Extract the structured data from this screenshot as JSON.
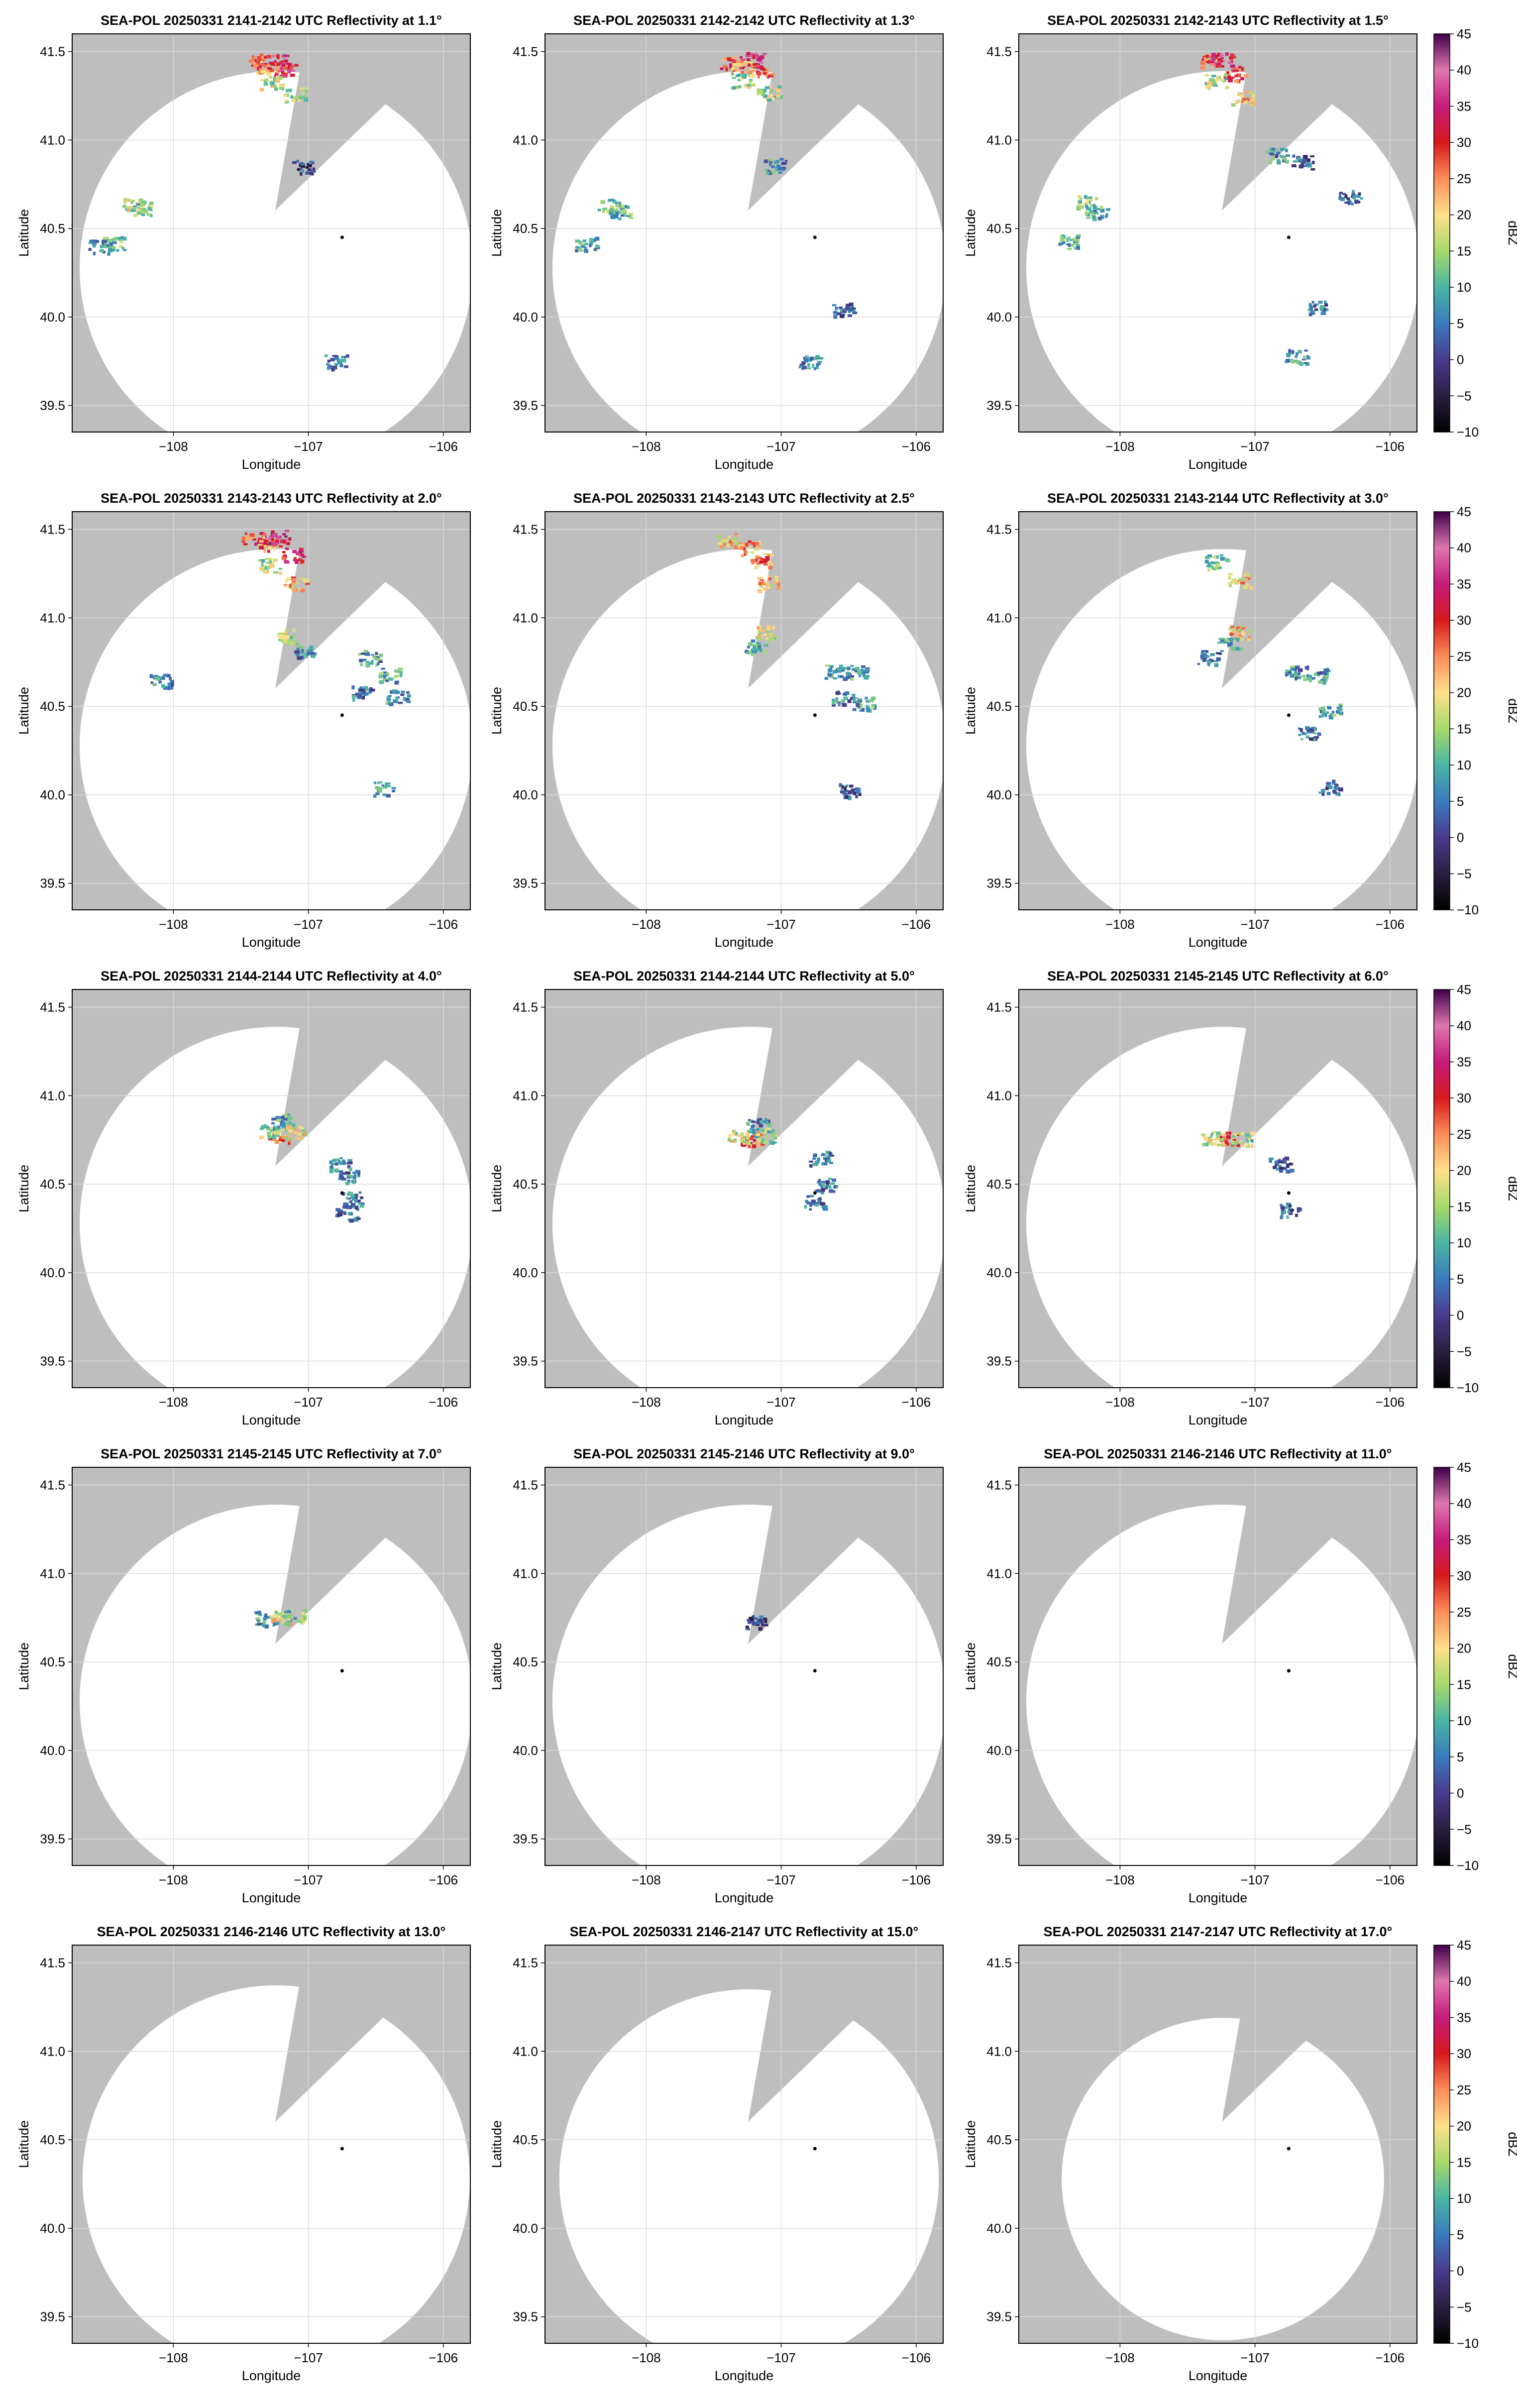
{
  "figure": {
    "xlabel": "Longitude",
    "ylabel": "Latitude",
    "colorbar_label": "dBZ",
    "background_color": "#bebebe",
    "coverage_color": "#ffffff",
    "grid_color": "#d9d9d9"
  },
  "colorbar": {
    "ticks": [
      45,
      40,
      35,
      30,
      25,
      20,
      15,
      10,
      5,
      0,
      -5,
      -10
    ],
    "labels": [
      "45",
      "40",
      "35",
      "30",
      "25",
      "20",
      "15",
      "10",
      "5",
      "0",
      "−5",
      "−10"
    ],
    "vmin": -10,
    "vmax": 45,
    "stops": [
      {
        "v": -10,
        "c": "#000000"
      },
      {
        "v": -5,
        "c": "#2b1e3f"
      },
      {
        "v": 0,
        "c": "#4a3a8f"
      },
      {
        "v": 5,
        "c": "#3a7bbd"
      },
      {
        "v": 10,
        "c": "#49b5a4"
      },
      {
        "v": 15,
        "c": "#a6d96a"
      },
      {
        "v": 20,
        "c": "#fee08b"
      },
      {
        "v": 25,
        "c": "#fc8d59"
      },
      {
        "v": 30,
        "c": "#d7191c"
      },
      {
        "v": 35,
        "c": "#c51b7d"
      },
      {
        "v": 40,
        "c": "#de77ae"
      },
      {
        "v": 45,
        "c": "#40004b"
      }
    ]
  },
  "chart_data": [
    {
      "type": "heatmap",
      "title": "SEA-POL 20250331 2141-2142 UTC Reflectivity at 1.1°",
      "elevation": 1.1,
      "radar": [
        -106.75,
        40.45
      ],
      "range_frac": 1.0,
      "echoes": [
        [
          -107.38,
          41.45,
          36
        ],
        [
          -107.32,
          41.42,
          30
        ],
        [
          -107.23,
          41.45,
          42
        ],
        [
          -107.18,
          41.4,
          38
        ],
        [
          -107.28,
          41.33,
          24
        ],
        [
          -107.1,
          41.26,
          22
        ],
        [
          -108.3,
          40.64,
          24
        ],
        [
          -108.25,
          40.62,
          20
        ],
        [
          -108.45,
          40.42,
          18
        ],
        [
          -108.55,
          40.4,
          15
        ],
        [
          -107.05,
          40.85,
          8
        ],
        [
          -106.8,
          39.75,
          12
        ]
      ]
    },
    {
      "type": "heatmap",
      "title": "SEA-POL 20250331 2142-2142 UTC Reflectivity at 1.3°",
      "elevation": 1.3,
      "radar": [
        -106.75,
        40.45
      ],
      "range_frac": 1.0,
      "echoes": [
        [
          -107.38,
          41.44,
          35
        ],
        [
          -107.3,
          41.42,
          30
        ],
        [
          -107.22,
          41.46,
          42
        ],
        [
          -107.16,
          41.4,
          36
        ],
        [
          -107.1,
          41.27,
          22
        ],
        [
          -107.3,
          41.34,
          22
        ],
        [
          -108.28,
          40.63,
          20
        ],
        [
          -108.2,
          40.6,
          17
        ],
        [
          -108.45,
          40.42,
          16
        ],
        [
          -107.05,
          40.86,
          14
        ],
        [
          -106.55,
          40.05,
          8
        ],
        [
          -106.8,
          39.75,
          12
        ]
      ]
    },
    {
      "type": "heatmap",
      "title": "SEA-POL 20250331 2142-2143 UTC Reflectivity at 1.5°",
      "elevation": 1.5,
      "radar": [
        -106.75,
        40.45
      ],
      "range_frac": 1.0,
      "echoes": [
        [
          -107.35,
          41.45,
          34
        ],
        [
          -107.25,
          41.46,
          42
        ],
        [
          -107.16,
          41.38,
          36
        ],
        [
          -107.1,
          41.24,
          28
        ],
        [
          -107.3,
          41.34,
          22
        ],
        [
          -108.25,
          40.65,
          20
        ],
        [
          -108.18,
          40.6,
          17
        ],
        [
          -106.85,
          40.92,
          14
        ],
        [
          -106.65,
          40.88,
          10
        ],
        [
          -106.3,
          40.68,
          10
        ],
        [
          -106.55,
          40.06,
          12
        ],
        [
          -106.7,
          39.78,
          14
        ],
        [
          -108.4,
          40.43,
          16
        ]
      ]
    },
    {
      "type": "heatmap",
      "title": "SEA-POL 20250331 2143-2143 UTC Reflectivity at 2.0°",
      "elevation": 2.0,
      "radar": [
        -106.75,
        40.45
      ],
      "range_frac": 1.0,
      "echoes": [
        [
          -107.42,
          41.46,
          36
        ],
        [
          -107.3,
          41.42,
          32
        ],
        [
          -107.22,
          41.46,
          44
        ],
        [
          -107.12,
          41.36,
          38
        ],
        [
          -107.1,
          41.2,
          30
        ],
        [
          -107.3,
          41.3,
          22
        ],
        [
          -107.15,
          40.9,
          22
        ],
        [
          -107.05,
          40.82,
          14
        ],
        [
          -106.55,
          40.78,
          14
        ],
        [
          -106.4,
          40.68,
          16
        ],
        [
          -106.35,
          40.56,
          14
        ],
        [
          -106.6,
          40.58,
          12
        ],
        [
          -108.1,
          40.65,
          14
        ],
        [
          -106.45,
          40.04,
          14
        ]
      ]
    },
    {
      "type": "heatmap",
      "title": "SEA-POL 20250331 2143-2143 UTC Reflectivity at 2.5°",
      "elevation": 2.5,
      "radar": [
        -106.75,
        40.45
      ],
      "range_frac": 1.0,
      "echoes": [
        [
          -107.4,
          41.44,
          28
        ],
        [
          -107.25,
          41.4,
          30
        ],
        [
          -107.15,
          41.33,
          32
        ],
        [
          -107.1,
          41.2,
          28
        ],
        [
          -107.12,
          40.92,
          26
        ],
        [
          -107.2,
          40.84,
          16
        ],
        [
          -106.6,
          40.7,
          16
        ],
        [
          -106.45,
          40.7,
          14
        ],
        [
          -106.4,
          40.52,
          16
        ],
        [
          -106.55,
          40.55,
          12
        ],
        [
          -106.5,
          40.03,
          10
        ]
      ]
    },
    {
      "type": "heatmap",
      "title": "SEA-POL 20250331 2143-2144 UTC Reflectivity at 3.0°",
      "elevation": 3.0,
      "radar": [
        -106.75,
        40.45
      ],
      "range_frac": 1.0,
      "echoes": [
        [
          -107.3,
          41.32,
          20
        ],
        [
          -107.12,
          41.22,
          28
        ],
        [
          -107.12,
          40.92,
          28
        ],
        [
          -107.2,
          40.85,
          18
        ],
        [
          -107.35,
          40.78,
          12
        ],
        [
          -106.7,
          40.7,
          14
        ],
        [
          -106.55,
          40.68,
          14
        ],
        [
          -106.45,
          40.48,
          16
        ],
        [
          -106.6,
          40.35,
          12
        ],
        [
          -106.45,
          40.05,
          10
        ]
      ]
    },
    {
      "type": "heatmap",
      "title": "SEA-POL 20250331 2144-2144 UTC Reflectivity at 4.0°",
      "elevation": 4.0,
      "radar": [
        -106.75,
        40.45
      ],
      "range_frac": 1.0,
      "echoes": [
        [
          -107.22,
          40.78,
          32
        ],
        [
          -107.12,
          40.8,
          26
        ],
        [
          -107.3,
          40.8,
          22
        ],
        [
          -107.2,
          40.86,
          16
        ],
        [
          -106.78,
          40.62,
          12
        ],
        [
          -106.7,
          40.55,
          12
        ],
        [
          -106.68,
          40.42,
          12
        ],
        [
          -106.72,
          40.34,
          12
        ]
      ]
    },
    {
      "type": "heatmap",
      "title": "SEA-POL 20250331 2144-2144 UTC Reflectivity at 5.0°",
      "elevation": 5.0,
      "radar": [
        -106.75,
        40.45
      ],
      "range_frac": 1.0,
      "echoes": [
        [
          -107.22,
          40.76,
          34
        ],
        [
          -107.32,
          40.77,
          24
        ],
        [
          -107.12,
          40.78,
          22
        ],
        [
          -107.18,
          40.84,
          14
        ],
        [
          -106.72,
          40.65,
          12
        ],
        [
          -106.68,
          40.5,
          12
        ],
        [
          -106.75,
          40.4,
          10
        ]
      ]
    },
    {
      "type": "heatmap",
      "title": "SEA-POL 20250331 2145-2145 UTC Reflectivity at 6.0°",
      "elevation": 6.0,
      "radar": [
        -106.75,
        40.45
      ],
      "range_frac": 1.0,
      "echoes": [
        [
          -107.2,
          40.76,
          32
        ],
        [
          -107.32,
          40.76,
          24
        ],
        [
          -107.1,
          40.76,
          22
        ],
        [
          -106.82,
          40.62,
          10
        ],
        [
          -106.75,
          40.36,
          10
        ]
      ]
    },
    {
      "type": "heatmap",
      "title": "SEA-POL 20250331 2145-2145 UTC Reflectivity at 7.0°",
      "elevation": 7.0,
      "radar": [
        -106.75,
        40.45
      ],
      "range_frac": 1.0,
      "echoes": [
        [
          -107.22,
          40.76,
          28
        ],
        [
          -107.32,
          40.75,
          14
        ],
        [
          -107.12,
          40.76,
          20
        ]
      ]
    },
    {
      "type": "heatmap",
      "title": "SEA-POL 20250331 2145-2146 UTC Reflectivity at 9.0°",
      "elevation": 9.0,
      "radar": [
        -106.75,
        40.45
      ],
      "range_frac": 1.0,
      "echoes": [
        [
          -107.2,
          40.73,
          6
        ]
      ]
    },
    {
      "type": "heatmap",
      "title": "SEA-POL 20250331 2146-2146 UTC Reflectivity at 11.0°",
      "elevation": 11.0,
      "radar": [
        -106.75,
        40.45
      ],
      "range_frac": 1.0,
      "echoes": []
    },
    {
      "type": "heatmap",
      "title": "SEA-POL 20250331 2146-2146 UTC Reflectivity at 13.0°",
      "elevation": 13.0,
      "radar": [
        -106.75,
        40.45
      ],
      "range_frac": 0.985,
      "echoes": []
    },
    {
      "type": "heatmap",
      "title": "SEA-POL 20250331 2146-2147 UTC Reflectivity at 15.0°",
      "elevation": 15.0,
      "radar": [
        -106.75,
        40.45
      ],
      "range_frac": 0.965,
      "echoes": []
    },
    {
      "type": "heatmap",
      "title": "SEA-POL 20250331 2147-2147 UTC Reflectivity at 17.0°",
      "elevation": 17.0,
      "radar": [
        -106.75,
        40.45
      ],
      "range_frac": 0.82,
      "echoes": []
    }
  ],
  "axes": {
    "xticks": [
      -108,
      -107,
      -106
    ],
    "xtick_labels": [
      "−108",
      "−107",
      "−106"
    ],
    "yticks": [
      39.5,
      40.0,
      40.5,
      41.0,
      41.5
    ],
    "ytick_labels": [
      "39.5",
      "40.0",
      "40.5",
      "41.0",
      "41.5"
    ],
    "xlim": [
      -108.75,
      -105.8
    ],
    "ylim": [
      39.35,
      41.6
    ]
  }
}
